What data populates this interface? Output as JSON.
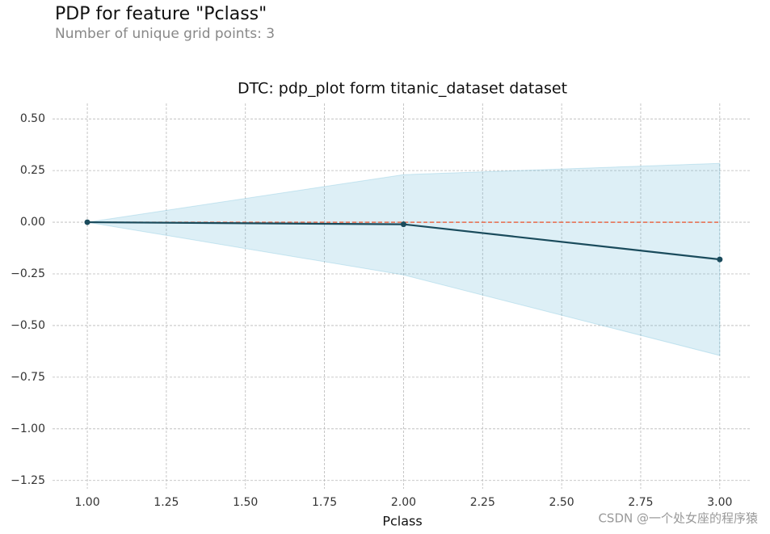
{
  "chart_data": {
    "type": "line",
    "title": "PDP for feature \"Pclass\"",
    "subtitle": "Number of unique grid points: 3",
    "plot_title": "DTC: pdp_plot form titanic_dataset dataset",
    "x_label": "Pclass",
    "watermark": "CSDN @一个处女座的程序猿",
    "x": [
      1,
      2,
      3
    ],
    "values": [
      0,
      -0.01,
      -0.18
    ],
    "upper": [
      0,
      0.23,
      0.285
    ],
    "lower": [
      0,
      -0.255,
      -0.645
    ],
    "color": "#1a4b5c",
    "band_color": "#66b8d8",
    "reference_line": 0,
    "reference_color": "#e8694a",
    "xlim": [
      0.89,
      3.095
    ],
    "ylim": [
      -1.29,
      0.575
    ],
    "xticks": [
      {
        "value": 1,
        "label": "1.00"
      },
      {
        "value": 1.25,
        "label": "1.25"
      },
      {
        "value": 1.5,
        "label": "1.50"
      },
      {
        "value": 1.75,
        "label": "1.75"
      },
      {
        "value": 2,
        "label": "2.00"
      },
      {
        "value": 2.25,
        "label": "2.25"
      },
      {
        "value": 2.5,
        "label": "2.50"
      },
      {
        "value": 2.75,
        "label": "2.75"
      },
      {
        "value": 3,
        "label": "3.00"
      }
    ],
    "yticks": [
      {
        "value": 0.5,
        "label": "0.50"
      },
      {
        "value": 0.25,
        "label": "0.25"
      },
      {
        "value": 0,
        "label": "0.00"
      },
      {
        "value": -0.25,
        "label": "−0.25"
      },
      {
        "value": -0.5,
        "label": "−0.50"
      },
      {
        "value": -0.75,
        "label": "−0.75"
      },
      {
        "value": -1,
        "label": "−1.00"
      },
      {
        "value": -1.25,
        "label": "−1.25"
      }
    ],
    "grid": true
  }
}
